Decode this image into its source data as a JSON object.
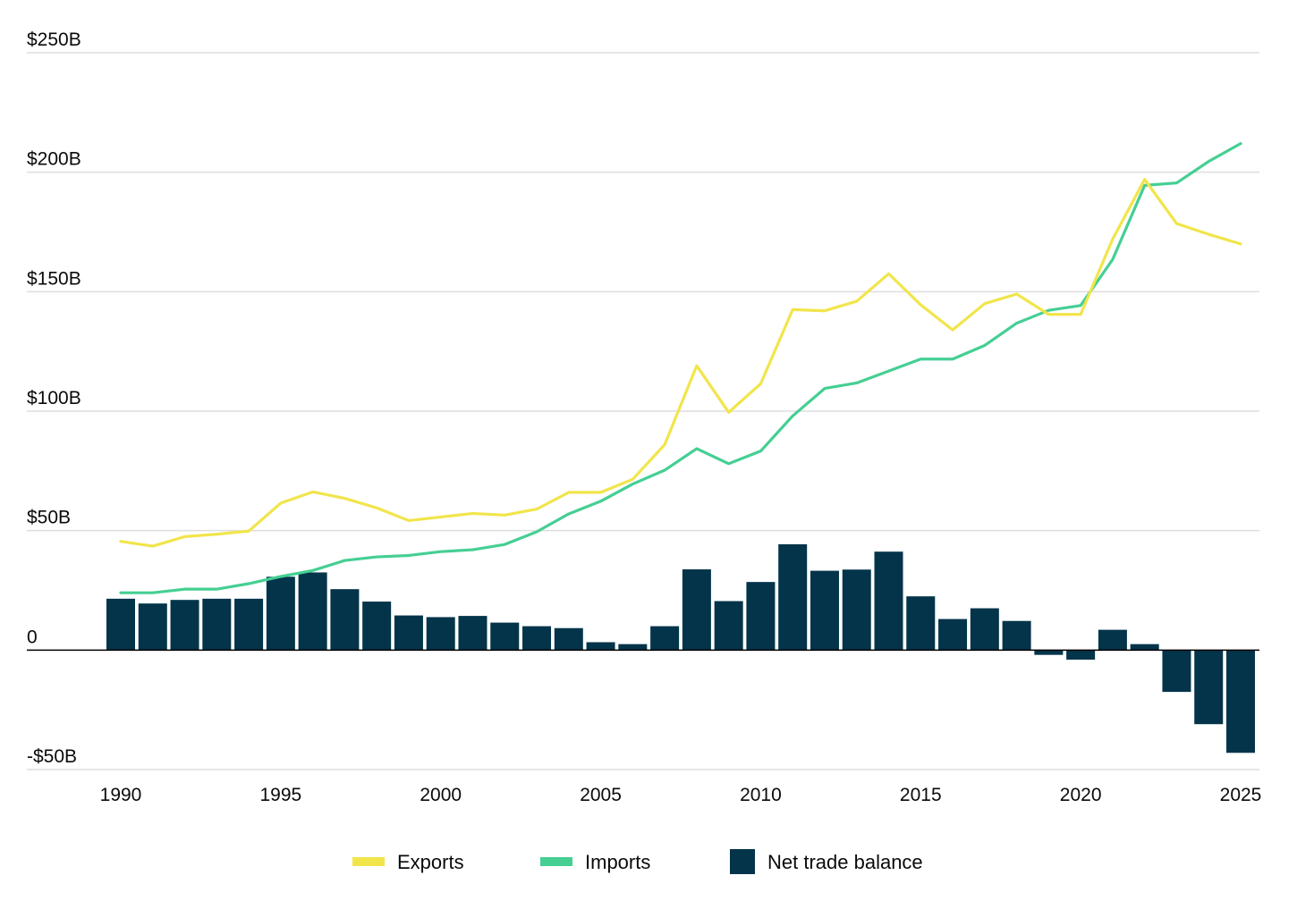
{
  "colors": {
    "exports": "#f1e54b",
    "imports": "#45cf93",
    "net": "#03344a",
    "grid": "#dedede",
    "zero_line": "#000000",
    "text": "#0a0a0a"
  },
  "chart_data": {
    "type": "bar",
    "title": "",
    "xlabel": "",
    "ylabel": "",
    "ylim": [
      -50,
      250
    ],
    "y_ticks": [
      {
        "value": 250,
        "label": "$250B"
      },
      {
        "value": 200,
        "label": "$200B"
      },
      {
        "value": 150,
        "label": "$150B"
      },
      {
        "value": 100,
        "label": "$100B"
      },
      {
        "value": 50,
        "label": "$50B"
      },
      {
        "value": 0,
        "label": "0"
      },
      {
        "value": -50,
        "label": "-$50B"
      }
    ],
    "x_ticks": [
      {
        "value": 1990,
        "label": "1990"
      },
      {
        "value": 1995,
        "label": "1995"
      },
      {
        "value": 2000,
        "label": "2000"
      },
      {
        "value": 2005,
        "label": "2005"
      },
      {
        "value": 2010,
        "label": "2010"
      },
      {
        "value": 2015,
        "label": "2015"
      },
      {
        "value": 2020,
        "label": "2020"
      },
      {
        "value": 2025,
        "label": "2025"
      }
    ],
    "years": [
      1990,
      1991,
      1992,
      1993,
      1994,
      1995,
      1996,
      1997,
      1998,
      1999,
      2000,
      2001,
      2002,
      2003,
      2004,
      2005,
      2006,
      2007,
      2008,
      2009,
      2010,
      2011,
      2012,
      2013,
      2014,
      2015,
      2016,
      2017,
      2018,
      2019,
      2020,
      2021,
      2022,
      2023,
      2024,
      2025
    ],
    "series": [
      {
        "name": "Exports",
        "kind": "line",
        "values": [
          45.5,
          43.5,
          47.5,
          48.5,
          49.8,
          61.5,
          66.2,
          63.5,
          59.5,
          54.2,
          55.7,
          57.2,
          56.5,
          59,
          66,
          66,
          71.5,
          86,
          119,
          99.5,
          111.5,
          142.5,
          142,
          146,
          157.5,
          144.5,
          134,
          145,
          149,
          140.5,
          140.5,
          172,
          197,
          178.5,
          174,
          170
        ]
      },
      {
        "name": "Imports",
        "kind": "line",
        "values": [
          24,
          24,
          25.5,
          25.5,
          27.8,
          30.8,
          33.3,
          37.5,
          39,
          39.6,
          41.2,
          42,
          44.2,
          49.5,
          57,
          62.3,
          69.5,
          75.3,
          84.3,
          78,
          83.3,
          98,
          109.5,
          111.8,
          116.8,
          121.8,
          121.8,
          127.5,
          136.8,
          142.2,
          144.2,
          163.5,
          194.5,
          195.5,
          204.5,
          212
        ]
      },
      {
        "name": "Net trade balance",
        "kind": "bar",
        "values": [
          21.5,
          19.5,
          21,
          21.5,
          21.5,
          30.7,
          32.5,
          25.5,
          20.3,
          14.5,
          13.8,
          14.3,
          11.5,
          10,
          9.2,
          3.3,
          2.5,
          10,
          33.8,
          20.5,
          28.5,
          44.3,
          33.2,
          33.7,
          41.2,
          22.5,
          13,
          17.5,
          12.2,
          -2,
          -4,
          8.5,
          2.5,
          -17.5,
          -31,
          -43
        ]
      }
    ],
    "legend": {
      "position": "bottom",
      "items": [
        {
          "label": "Exports",
          "swatch": "line"
        },
        {
          "label": "Imports",
          "swatch": "line"
        },
        {
          "label": "Net trade balance",
          "swatch": "box"
        }
      ]
    },
    "grid": true
  }
}
